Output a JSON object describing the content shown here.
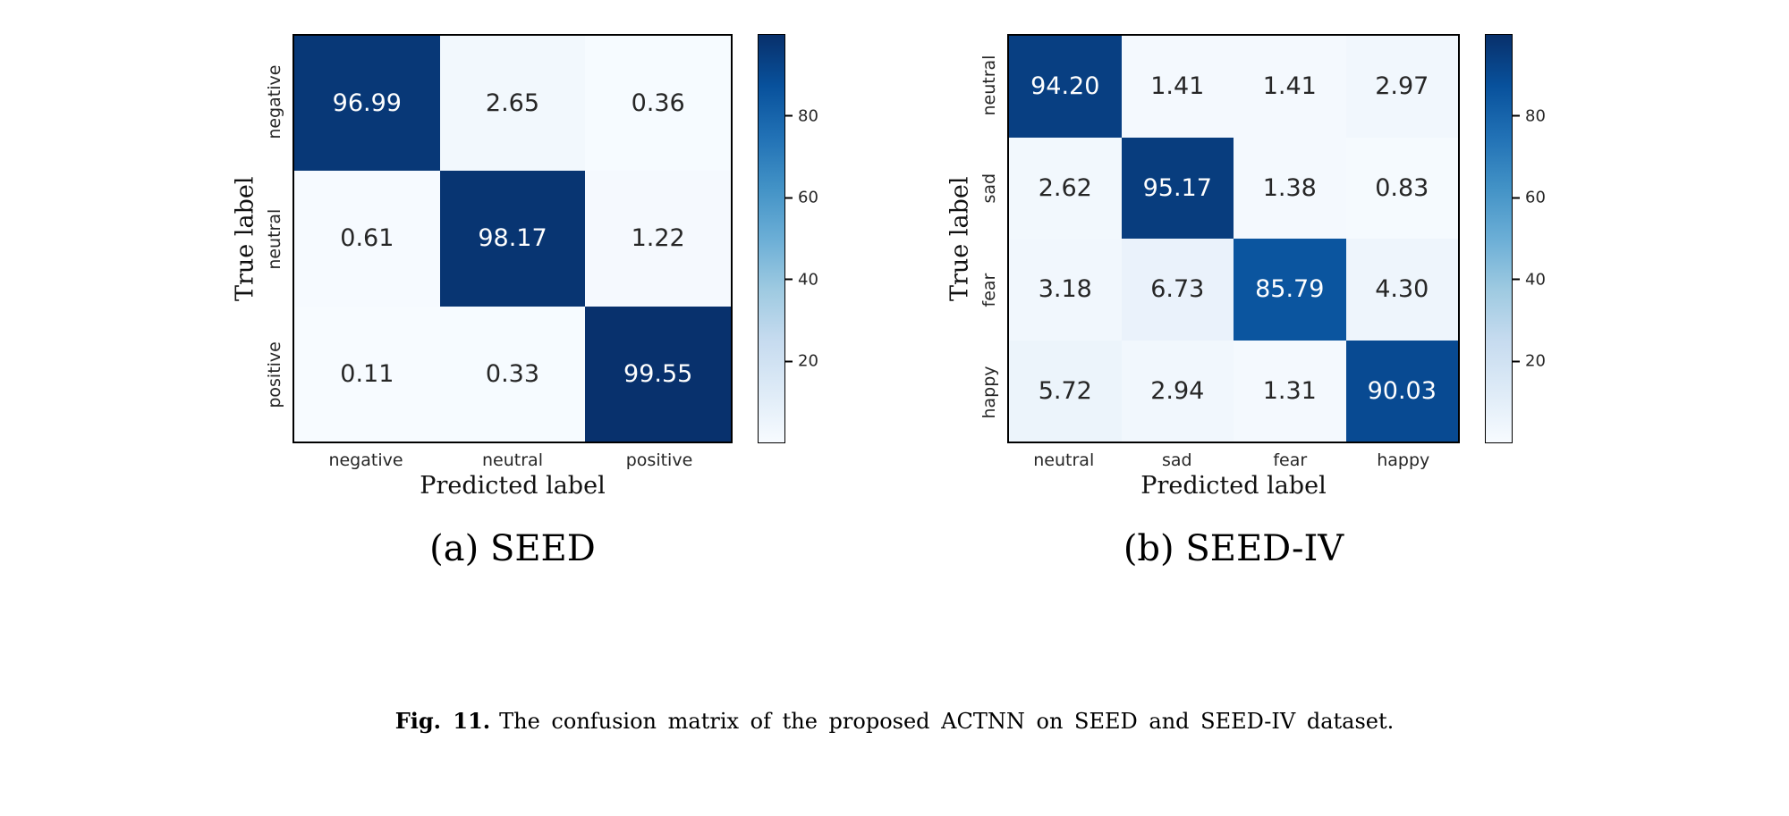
{
  "figure": {
    "caption_label": "Fig. 11.",
    "caption_text": "The confusion matrix of the proposed ACTNN on SEED and SEED-IV dataset."
  },
  "colors": {
    "colormap_stops": [
      "#f7fbff",
      "#deebf7",
      "#c6dbef",
      "#9ecae1",
      "#6baed6",
      "#4292c6",
      "#2171b5",
      "#08519c",
      "#08306b"
    ],
    "cell_text_dark": "#262626",
    "cell_text_light": "#ffffff",
    "axis_color": "#000000"
  },
  "chart_data": [
    {
      "type": "heatmap",
      "title": "(a) SEED",
      "xlabel": "Predicted label",
      "ylabel": "True label",
      "categories": [
        "negative",
        "neutral",
        "positive"
      ],
      "values": [
        [
          96.99,
          2.65,
          0.36
        ],
        [
          0.61,
          98.17,
          1.22
        ],
        [
          0.11,
          0.33,
          99.55
        ]
      ],
      "colormap": "Blues",
      "vmin": 0,
      "vmax": 100,
      "colorbar_ticks": [
        20,
        40,
        60,
        80
      ],
      "grid": false,
      "legend": "colorbar-right"
    },
    {
      "type": "heatmap",
      "title": "(b) SEED-IV",
      "xlabel": "Predicted label",
      "ylabel": "True label",
      "categories": [
        "neutral",
        "sad",
        "fear",
        "happy"
      ],
      "values": [
        [
          94.2,
          1.41,
          1.41,
          2.97
        ],
        [
          2.62,
          95.17,
          1.38,
          0.83
        ],
        [
          3.18,
          6.73,
          85.79,
          4.3
        ],
        [
          5.72,
          2.94,
          1.31,
          90.03
        ]
      ],
      "colormap": "Blues",
      "vmin": 0,
      "vmax": 100,
      "colorbar_ticks": [
        20,
        40,
        60,
        80
      ],
      "grid": false,
      "legend": "colorbar-right"
    }
  ]
}
